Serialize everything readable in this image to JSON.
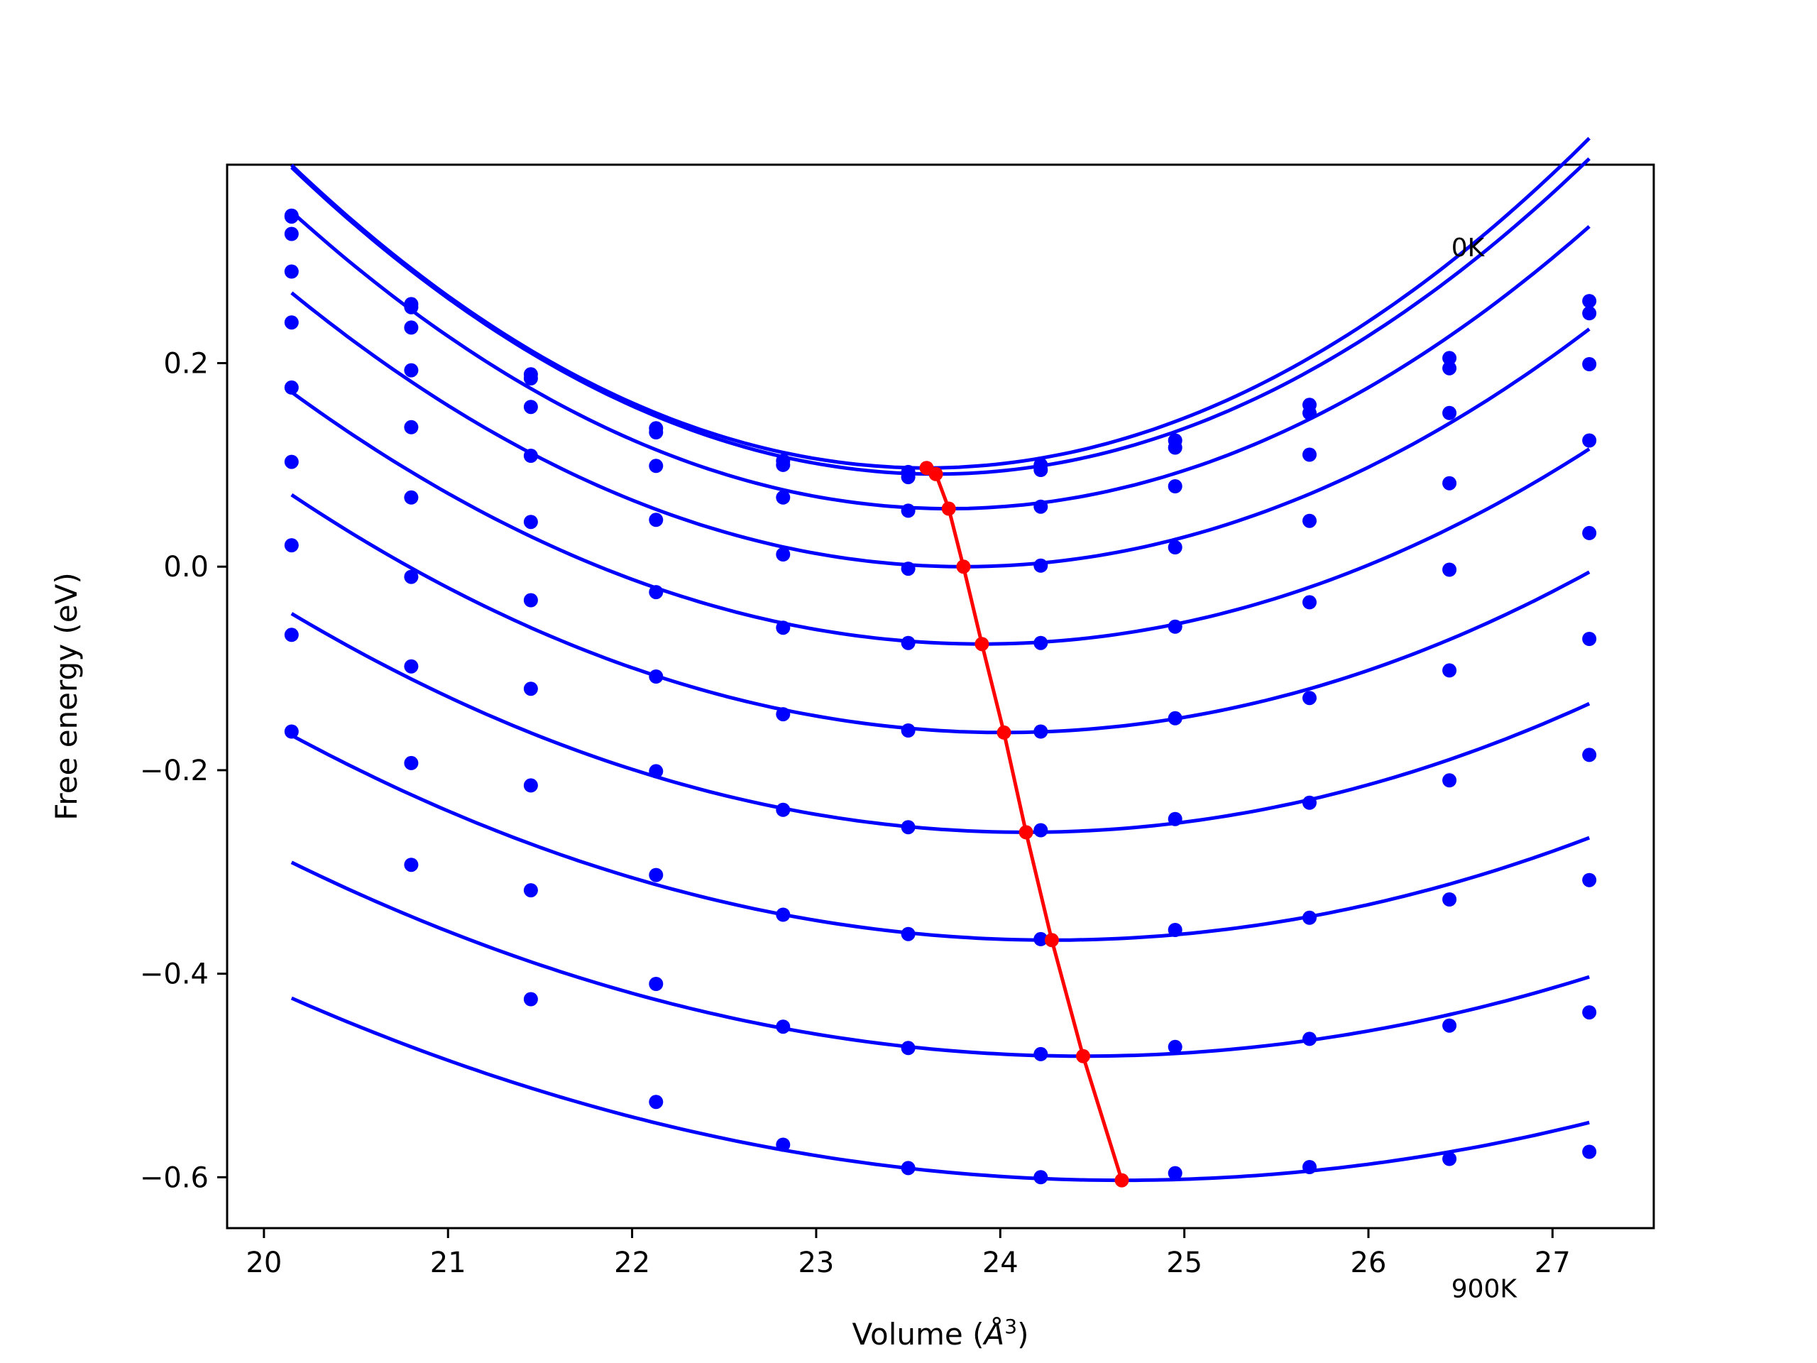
{
  "chart_data": {
    "type": "line",
    "xlabel": "Volume (",
    "xlabel_unit": "Å",
    "xlabel_exp": "3",
    "xlabel_end": ")",
    "ylabel": "Free energy (eV)",
    "xlim": [
      19.8,
      27.55
    ],
    "ylim": [
      -0.65,
      0.395
    ],
    "xticks": [
      20,
      21,
      22,
      23,
      24,
      25,
      26,
      27
    ],
    "xtick_labels": [
      "20",
      "21",
      "22",
      "23",
      "24",
      "25",
      "26",
      "27"
    ],
    "yticks": [
      -0.6,
      -0.4,
      -0.2,
      0.0,
      0.2
    ],
    "ytick_labels": [
      "−0.6",
      "−0.4",
      "−0.2",
      "0.0",
      "0.2"
    ],
    "grid": false,
    "colors": {
      "data": "#0000ff",
      "minima": "#ff0000"
    },
    "annotations": [
      {
        "text": "0K",
        "x": 26.45,
        "y": 0.305
      },
      {
        "text": "900K",
        "x": 26.45,
        "y": -0.718
      }
    ],
    "volumes": [
      20.15,
      20.8,
      21.45,
      22.13,
      22.82,
      23.5,
      24.22,
      24.95,
      25.68,
      26.44,
      27.2
    ],
    "series": [
      {
        "values": [
          0.345,
          0.258,
          0.189,
          0.136,
          0.104,
          0.093,
          0.1,
          0.124,
          0.159,
          0.205,
          0.261
        ],
        "fit": {
          "a": 0.025,
          "v0": 23.6,
          "e0": 0.097
        }
      },
      {
        "values": [
          0.344,
          0.255,
          0.185,
          0.132,
          0.1,
          0.088,
          0.095,
          0.117,
          0.151,
          0.195,
          0.249
        ],
        "fit": {
          "a": 0.0246,
          "v0": 23.65,
          "e0": 0.091
        }
      },
      {
        "values": [
          0.327,
          0.235,
          0.157,
          0.099,
          0.068,
          0.055,
          0.059,
          0.079,
          0.11,
          0.151,
          0.199
        ],
        "fit": {
          "a": 0.0229,
          "v0": 23.72,
          "e0": 0.057
        }
      },
      {
        "values": [
          0.29,
          0.193,
          0.109,
          0.046,
          0.012,
          -0.002,
          0.001,
          0.019,
          0.045,
          0.082,
          0.124
        ],
        "fit": {
          "a": 0.0202,
          "v0": 23.8,
          "e0": 0.0
        }
      },
      {
        "values": [
          0.24,
          0.137,
          0.044,
          -0.025,
          -0.06,
          -0.075,
          -0.075,
          -0.059,
          -0.035,
          -0.003,
          0.033
        ],
        "fit": {
          "a": 0.0176,
          "v0": 23.9,
          "e0": -0.076
        }
      },
      {
        "values": [
          0.176,
          0.068,
          -0.033,
          -0.108,
          -0.145,
          -0.161,
          -0.162,
          -0.149,
          -0.129,
          -0.102,
          -0.071
        ],
        "fit": {
          "a": 0.0156,
          "v0": 24.02,
          "e0": -0.163
        }
      },
      {
        "values": [
          0.103,
          -0.01,
          -0.12,
          -0.201,
          -0.239,
          -0.256,
          -0.259,
          -0.248,
          -0.232,
          -0.21,
          -0.185
        ],
        "fit": {
          "a": 0.0135,
          "v0": 24.14,
          "e0": -0.261
        }
      },
      {
        "values": [
          0.021,
          -0.098,
          -0.215,
          -0.303,
          -0.342,
          -0.361,
          -0.366,
          -0.357,
          -0.345,
          -0.327,
          -0.308
        ],
        "fit": {
          "a": 0.0118,
          "v0": 24.28,
          "e0": -0.367
        }
      },
      {
        "values": [
          -0.067,
          -0.193,
          -0.318,
          -0.41,
          -0.452,
          -0.473,
          -0.479,
          -0.472,
          -0.464,
          -0.451,
          -0.438
        ],
        "fit": {
          "a": 0.0103,
          "v0": 24.45,
          "e0": -0.481
        }
      },
      {
        "values": [
          -0.162,
          -0.293,
          -0.425,
          -0.526,
          -0.568,
          -0.591,
          -0.6,
          -0.596,
          -0.59,
          -0.582,
          -0.575
        ],
        "fit": {
          "a": 0.0088,
          "v0": 24.66,
          "e0": -0.603
        }
      }
    ],
    "minima": {
      "x": [
        23.6,
        23.65,
        23.72,
        23.8,
        23.9,
        24.02,
        24.14,
        24.28,
        24.45,
        24.66
      ],
      "y": [
        0.097,
        0.091,
        0.057,
        0.0,
        -0.076,
        -0.163,
        -0.261,
        -0.367,
        -0.481,
        -0.603
      ]
    }
  }
}
